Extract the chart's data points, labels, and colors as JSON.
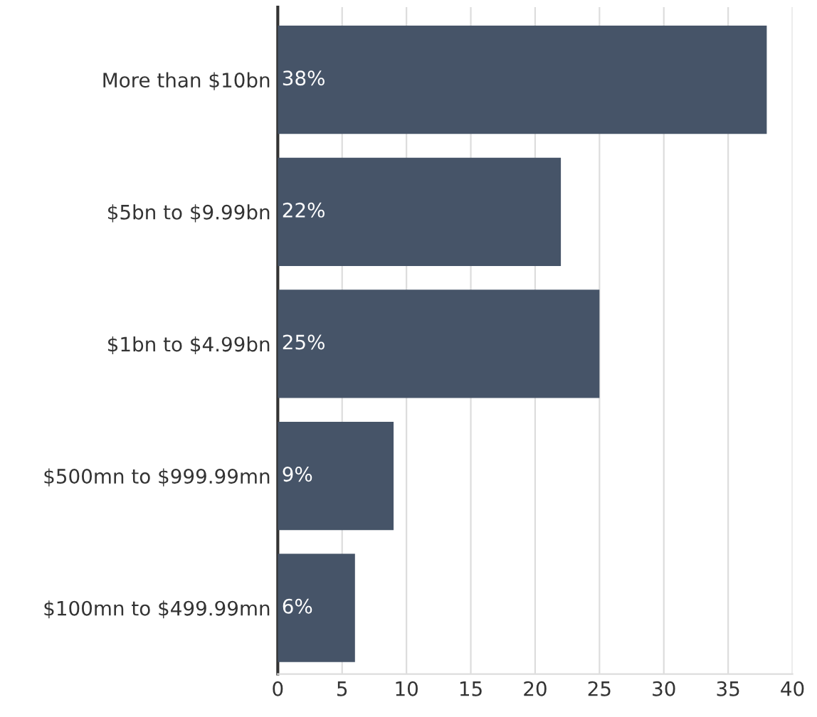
{
  "chart_data": {
    "type": "bar",
    "orientation": "horizontal",
    "categories": [
      "More than $10bn",
      "$5bn to $9.99bn",
      "$1bn to $4.99bn",
      "$500mn to $999.99mn",
      "$100mn to $499.99mn"
    ],
    "values": [
      38,
      22,
      25,
      9,
      6
    ],
    "value_labels": [
      "38%",
      "22%",
      "25%",
      "9%",
      "6%"
    ],
    "color": "#465468",
    "xlim": [
      0,
      40
    ],
    "xticks": [
      0,
      5,
      10,
      15,
      20,
      25,
      30,
      35,
      40
    ],
    "grid": "x",
    "legend": false
  }
}
